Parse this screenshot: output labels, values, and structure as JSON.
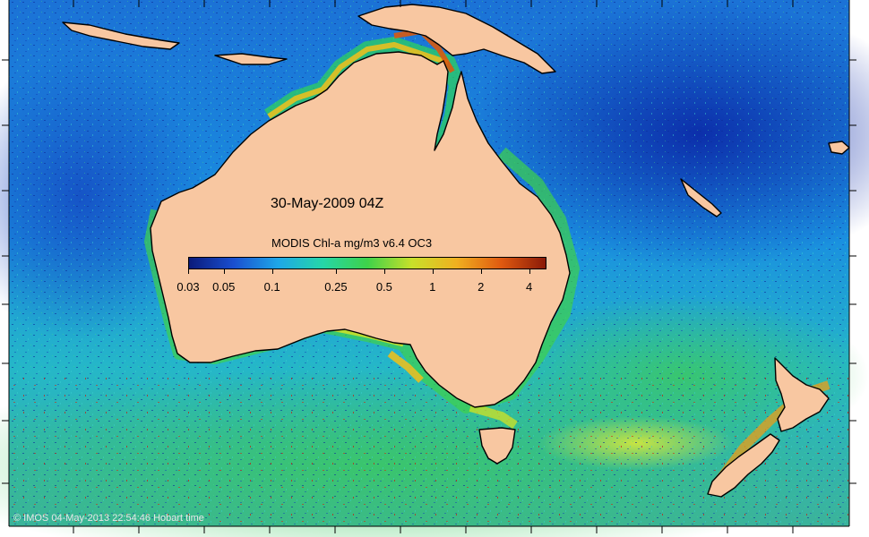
{
  "map": {
    "date_label": "30-May-2009 04Z",
    "colorbar": {
      "title": "MODIS Chl-a mg/m3 v6.4 OC3",
      "ticks": [
        "0.03",
        "0.05",
        "0.1",
        "0.25",
        "0.5",
        "1",
        "2",
        "4"
      ],
      "tick_values": [
        0.03,
        0.05,
        0.1,
        0.25,
        0.5,
        1,
        2,
        4
      ],
      "range": [
        0.03,
        5
      ],
      "scale": "log",
      "colors": [
        "#0a1a7a",
        "#1a4fd0",
        "#1ea7e8",
        "#25d6a8",
        "#3ed24a",
        "#c8e02a",
        "#f0b020",
        "#e05a10",
        "#8a1a08"
      ]
    },
    "credit": "© IMOS 04-May-2013 22:54:46 Hobart time",
    "land_color": "#f8c7a1"
  }
}
